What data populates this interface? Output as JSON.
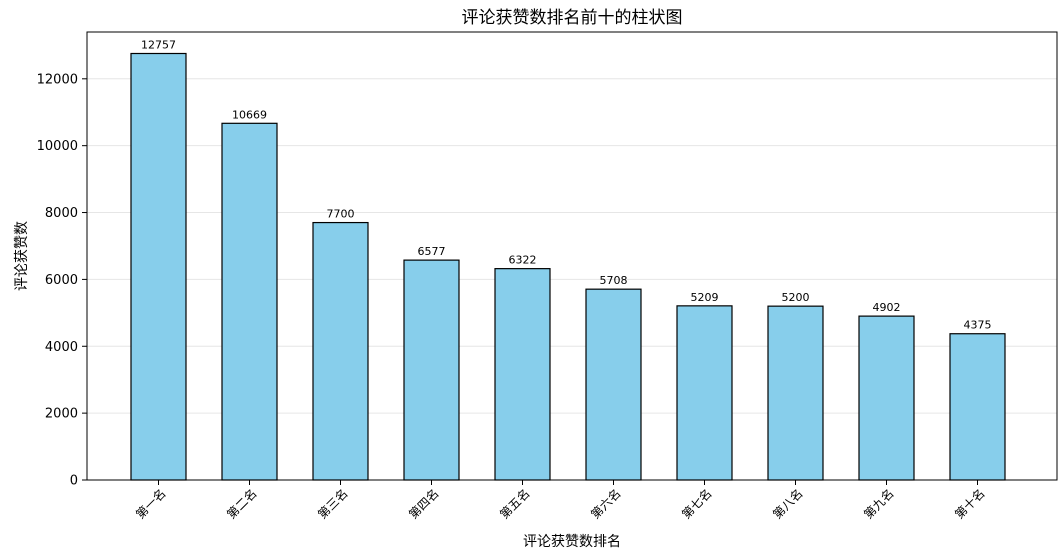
{
  "chart_data": {
    "type": "bar",
    "title": "评论获赞数排名前十的柱状图",
    "xlabel": "评论获赞数排名",
    "ylabel": "评论获赞数",
    "categories": [
      "第一名",
      "第二名",
      "第三名",
      "第四名",
      "第五名",
      "第六名",
      "第七名",
      "第八名",
      "第九名",
      "第十名"
    ],
    "values": [
      12757,
      10669,
      7700,
      6577,
      6322,
      5708,
      5209,
      5200,
      4902,
      4375
    ],
    "ylim": [
      0,
      13400
    ],
    "yticks": [
      0,
      2000,
      4000,
      6000,
      8000,
      10000,
      12000
    ],
    "grid": "horizontal",
    "bar_color": "#87CEEB",
    "edge_color": "#000000",
    "grid_color": "#e6e6e6"
  }
}
